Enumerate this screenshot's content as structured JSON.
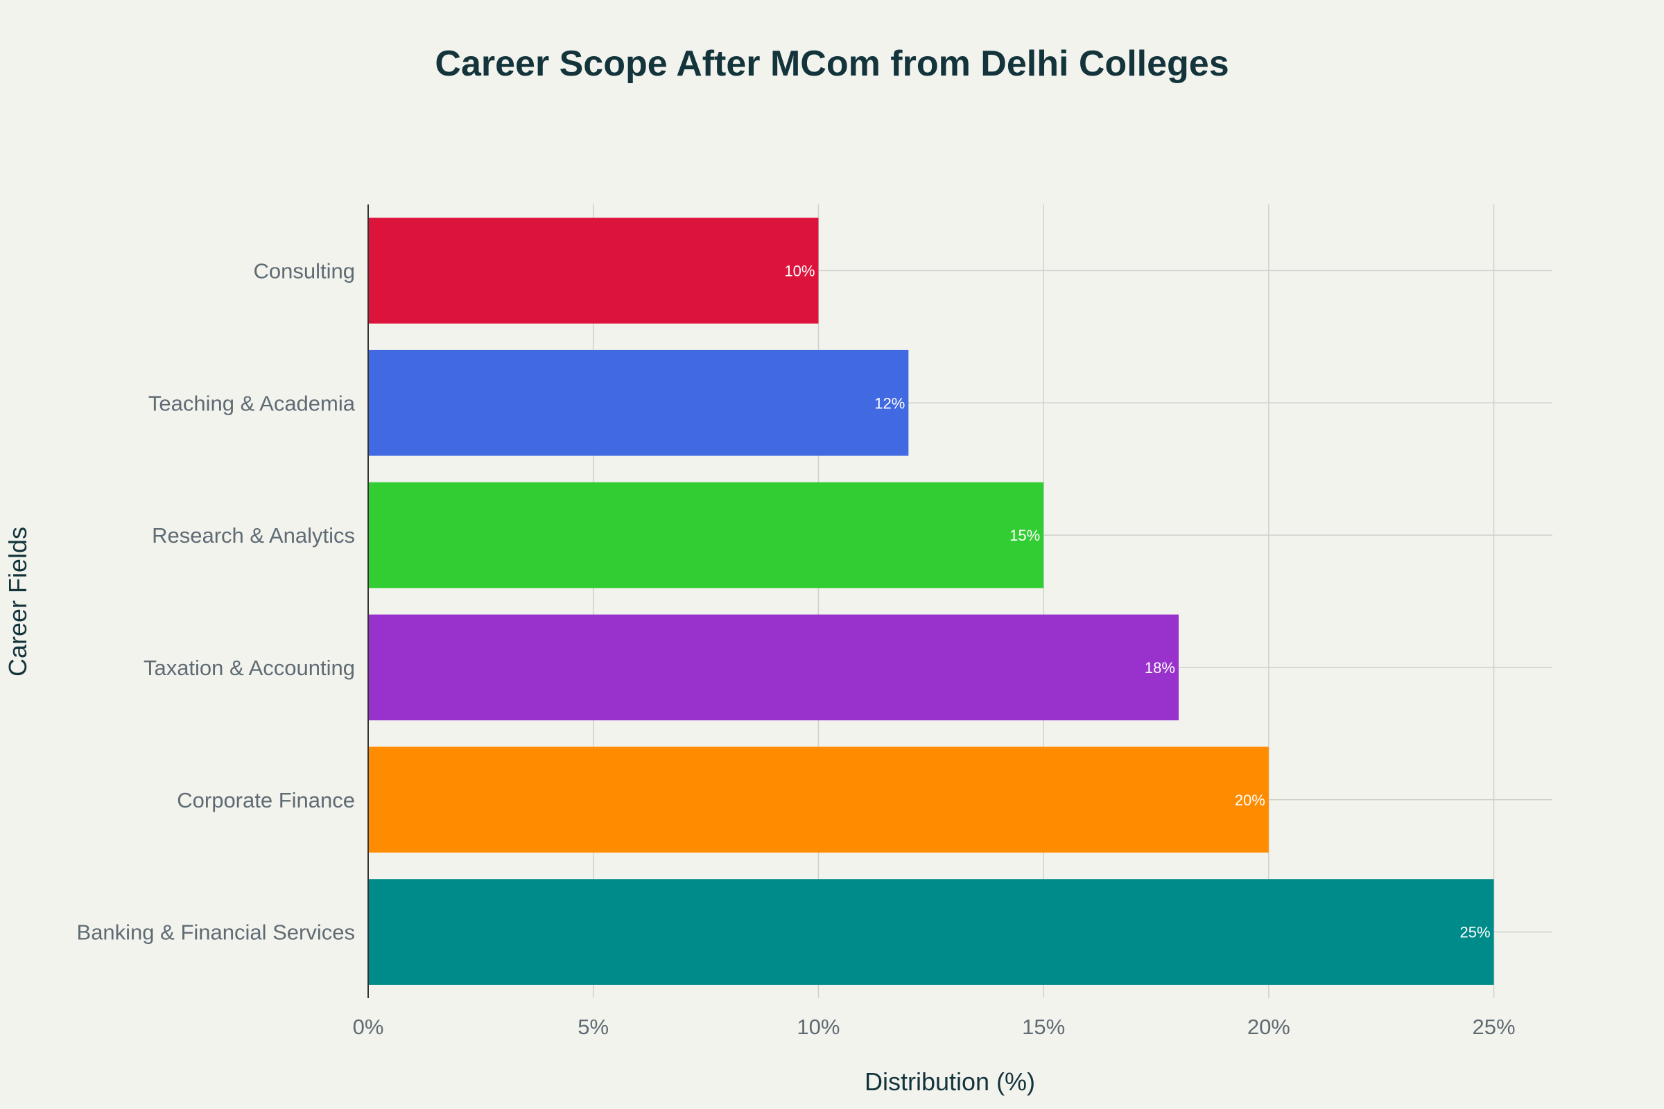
{
  "chart_data": {
    "type": "bar",
    "orientation": "horizontal",
    "title": "Career Scope After MCom from Delhi Colleges",
    "xlabel": "Distribution (%)",
    "ylabel": "Career Fields",
    "categories": [
      "Banking & Financial Services",
      "Corporate Finance",
      "Taxation & Accounting",
      "Research & Analytics",
      "Teaching & Academia",
      "Consulting"
    ],
    "values": [
      25,
      20,
      18,
      15,
      12,
      10
    ],
    "data_labels": [
      "25%",
      "20%",
      "18%",
      "15%",
      "12%",
      "10%"
    ],
    "colors": [
      "#008B8B",
      "#FF8C00",
      "#9932CC",
      "#32CD32",
      "#4169E1",
      "#DC143C"
    ],
    "xlim": [
      0,
      26.3
    ],
    "xticks": [
      0,
      5,
      10,
      15,
      20,
      25
    ],
    "xtick_labels": [
      "0%",
      "5%",
      "10%",
      "15%",
      "20%",
      "25%"
    ],
    "grid": true,
    "background": "#f3f3ee"
  }
}
